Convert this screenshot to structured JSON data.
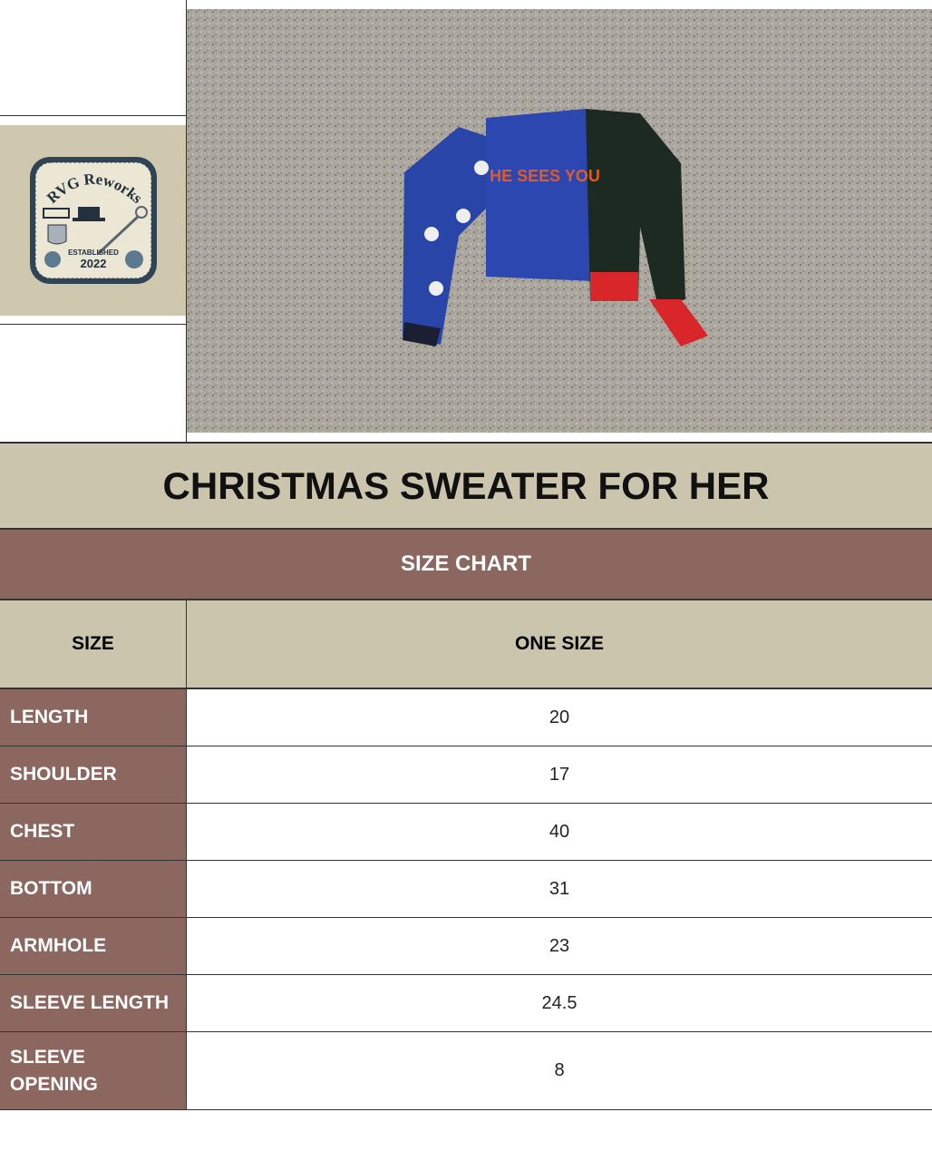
{
  "logo": {
    "brand": "RVG Reworks",
    "established": "ESTABLISHED",
    "year": "2022"
  },
  "photo": {
    "sweater_text": "HE SEES YOU"
  },
  "title": "CHRISTMAS SWEATER FOR HER",
  "chart_title": "SIZE CHART",
  "header": {
    "size_label": "SIZE",
    "size_value": "ONE SIZE"
  },
  "rows": [
    {
      "label": "LENGTH",
      "value": "20"
    },
    {
      "label": "SHOULDER",
      "value": "17"
    },
    {
      "label": "CHEST",
      "value": "40"
    },
    {
      "label": "BOTTOM",
      "value": "31"
    },
    {
      "label": "ARMHOLE",
      "value": "23"
    },
    {
      "label": "SLEEVE LENGTH",
      "value": "24.5"
    },
    {
      "label": "SLEEVE OPENING",
      "value": "8"
    }
  ],
  "colors": {
    "beige": "#cbc5ae",
    "brown": "#8b675f"
  }
}
